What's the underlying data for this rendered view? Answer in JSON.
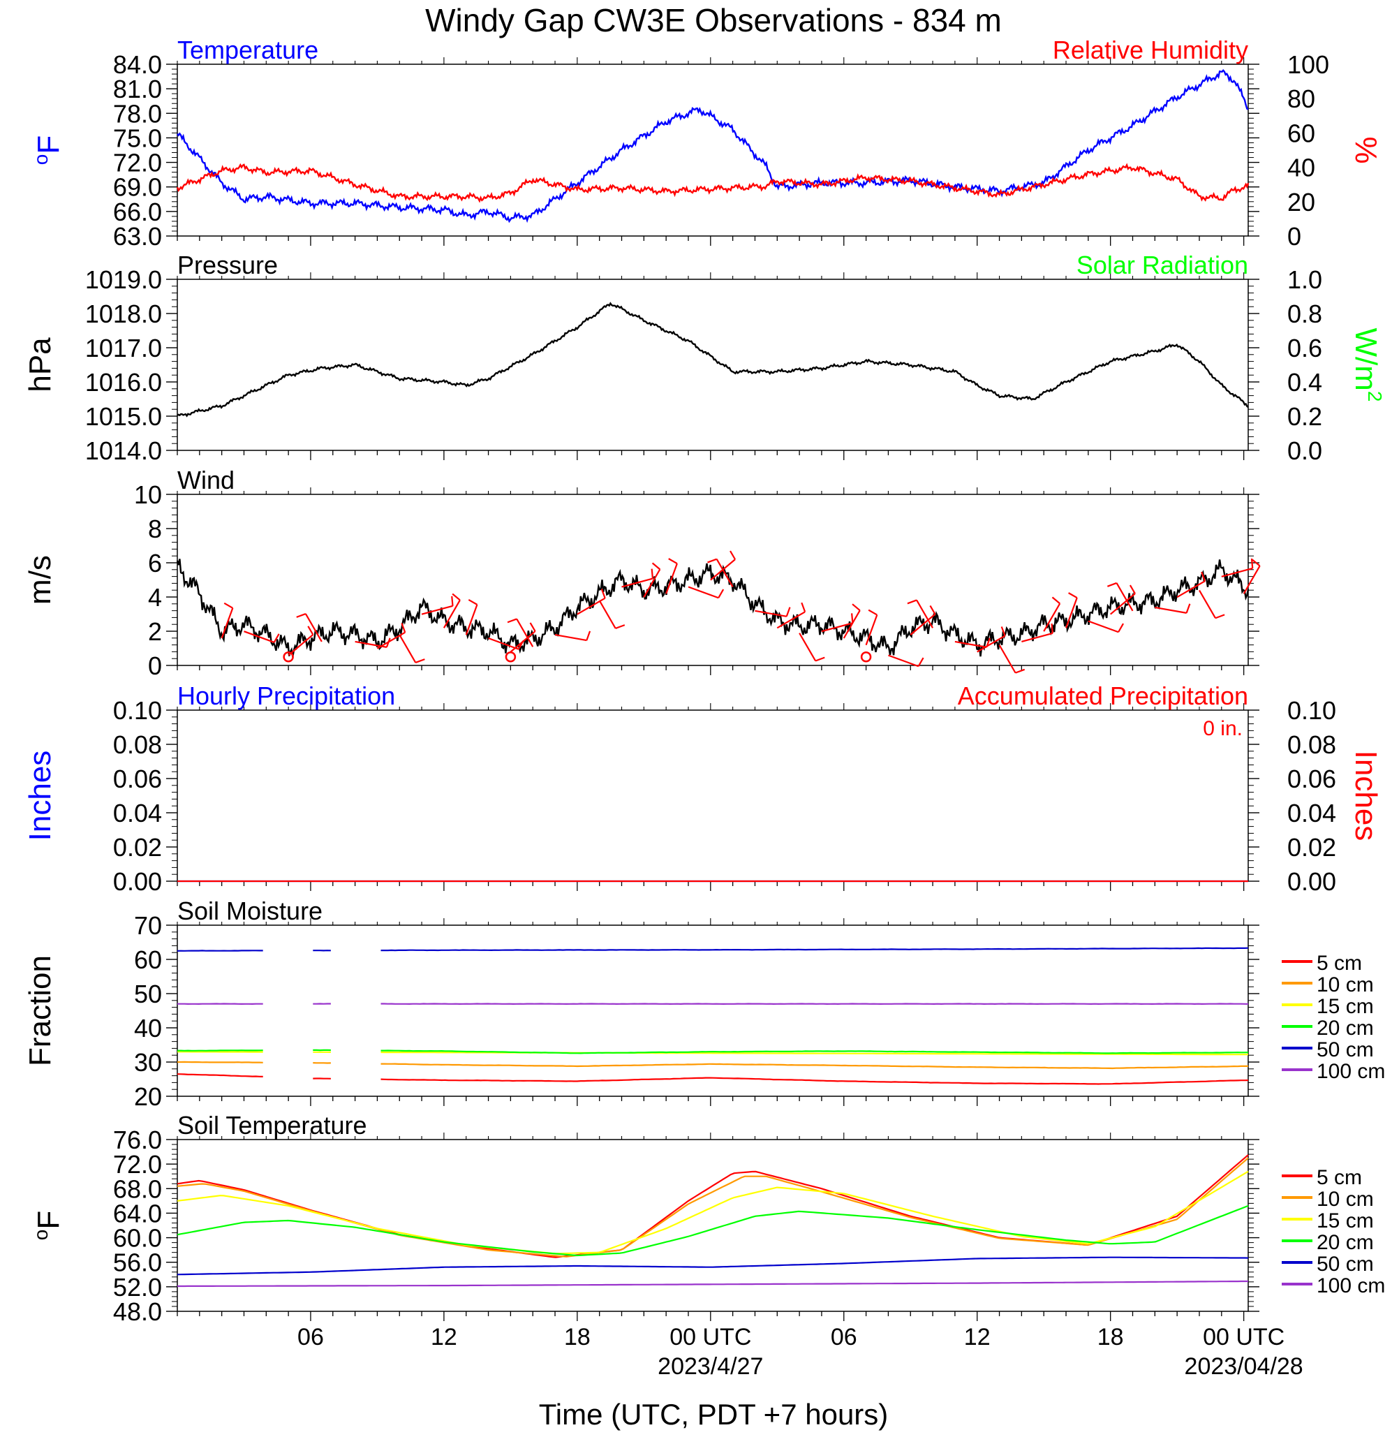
{
  "title": "Windy Gap CW3E Observations - 834 m",
  "xlabel": "Time (UTC, PDT +7 hours)",
  "x_ticks": [
    "06",
    "12",
    "18",
    "00 UTC",
    "06",
    "12",
    "18",
    "00 UTC"
  ],
  "date_labels": [
    "2023/4/27",
    "2023/04/28"
  ],
  "colors": {
    "blue": "#0000ff",
    "red": "#ff0000",
    "green": "#00ff00",
    "black": "#000000",
    "orange": "#ff9900",
    "yellow": "#ffff00",
    "purple": "#9933cc",
    "navy": "#0000cc"
  },
  "chart_data": [
    {
      "type": "line",
      "left_title": "Temperature",
      "right_title": "Relative Humidity",
      "ylabel": "°F",
      "ylabel_right": "%",
      "ylim": [
        63,
        84
      ],
      "y2lim": [
        0,
        100
      ],
      "y_ticks": [
        "63.0",
        "66.0",
        "69.0",
        "72.0",
        "75.0",
        "78.0",
        "81.0",
        "84.0"
      ],
      "y2_ticks": [
        "0",
        "20",
        "40",
        "60",
        "80",
        "100"
      ],
      "x_hours": [
        0,
        2,
        3,
        4,
        6,
        8,
        10,
        12,
        13,
        14,
        15,
        16,
        18,
        20,
        22,
        23.5,
        25,
        26.5,
        27,
        29,
        31,
        33,
        35,
        37,
        39,
        41,
        43,
        45,
        46,
        47,
        47.6,
        48.2
      ],
      "series": [
        {
          "name": "Temperature",
          "color": "#0000ff",
          "axis": "left",
          "y": [
            75.5,
            69.5,
            67.5,
            67.8,
            67.0,
            67.0,
            66.5,
            66.2,
            65.5,
            66.0,
            65.2,
            65.5,
            69.5,
            73.5,
            77.0,
            78.5,
            76.0,
            71.5,
            69.0,
            69.5,
            69.5,
            69.8,
            69.0,
            68.5,
            69.5,
            73.5,
            76.5,
            80.0,
            81.5,
            83.0,
            82.0,
            78.5
          ]
        },
        {
          "name": "Relative Humidity",
          "color": "#ff0000",
          "axis": "right",
          "y": [
            28,
            38,
            40,
            37,
            38,
            30,
            23,
            23,
            23,
            22,
            25,
            33,
            27,
            28,
            26,
            27,
            28,
            29,
            32,
            30,
            34,
            32,
            28,
            24,
            30,
            36,
            40,
            33,
            23,
            22,
            27,
            29
          ]
        }
      ]
    },
    {
      "type": "line",
      "left_title": "Pressure",
      "right_title": "Solar Radiation",
      "ylabel": "hPa",
      "ylabel_right": "W/m",
      "ylabel_right_sup": "2",
      "ylim": [
        1014,
        1019
      ],
      "y2lim": [
        0,
        1
      ],
      "y_ticks": [
        "1014.0",
        "1015.0",
        "1016.0",
        "1017.0",
        "1018.0",
        "1019.0"
      ],
      "y2_ticks": [
        "0.0",
        "0.2",
        "0.4",
        "0.6",
        "0.8",
        "1.0"
      ],
      "x_hours": [
        0,
        2,
        4,
        5,
        6.5,
        8,
        9,
        10,
        12,
        13,
        14,
        16,
        18,
        19.5,
        21,
        23,
        25,
        27,
        29,
        31,
        33,
        35,
        36,
        37,
        38.5,
        40,
        42,
        44,
        45,
        46,
        47,
        48.2
      ],
      "series": [
        {
          "name": "Pressure",
          "color": "#000000",
          "axis": "left",
          "y": [
            1015.0,
            1015.3,
            1015.9,
            1016.2,
            1016.4,
            1016.5,
            1016.3,
            1016.1,
            1016.0,
            1015.9,
            1016.1,
            1016.8,
            1017.6,
            1018.3,
            1017.8,
            1017.2,
            1016.3,
            1016.3,
            1016.4,
            1016.6,
            1016.5,
            1016.3,
            1015.9,
            1015.6,
            1015.5,
            1016.0,
            1016.6,
            1016.9,
            1017.1,
            1016.6,
            1015.9,
            1015.3
          ]
        }
      ]
    },
    {
      "type": "line",
      "left_title": "Wind",
      "ylabel": "m/s",
      "ylim": [
        0,
        10
      ],
      "y_ticks": [
        "0",
        "2",
        "4",
        "6",
        "8",
        "10"
      ],
      "x_hours": [
        0,
        1,
        2,
        3,
        4,
        5,
        6,
        7,
        8,
        9,
        10,
        11,
        12,
        13,
        14,
        15,
        16,
        17,
        18,
        19,
        20,
        21,
        22,
        23,
        24,
        25,
        26,
        27,
        28,
        29,
        30,
        31,
        32,
        33,
        34,
        35,
        36,
        37,
        38,
        39,
        40,
        41,
        42,
        43,
        44,
        45,
        46,
        47,
        48.2
      ],
      "series": [
        {
          "name": "Wind",
          "color": "#000000",
          "axis": "left",
          "y": [
            5.8,
            4.2,
            2.0,
            2.4,
            1.8,
            1.0,
            1.6,
            2.0,
            1.8,
            1.4,
            2.2,
            3.4,
            2.6,
            2.2,
            2.0,
            1.2,
            1.5,
            2.2,
            3.4,
            4.2,
            5.0,
            4.4,
            4.6,
            5.0,
            5.4,
            5.0,
            3.6,
            2.6,
            2.3,
            2.4,
            2.0,
            1.6,
            1.0,
            2.2,
            2.6,
            1.8,
            1.2,
            1.6,
            1.8,
            2.4,
            2.6,
            3.0,
            3.4,
            3.6,
            3.8,
            4.4,
            4.8,
            5.6,
            4.4
          ]
        }
      ],
      "barb_hours": [
        2,
        3,
        5,
        6.5,
        8,
        9,
        10,
        11,
        12,
        13,
        14,
        15,
        16,
        17,
        18,
        19,
        20,
        21,
        22,
        23,
        24,
        25,
        26,
        27,
        28,
        29,
        30,
        31,
        32,
        33,
        34,
        35,
        36,
        37,
        38,
        39,
        40,
        41,
        42,
        43,
        44,
        45,
        46,
        47,
        48
      ],
      "calm_hours": [
        5,
        15,
        31
      ]
    },
    {
      "type": "line",
      "left_title": "Hourly Precipitation",
      "right_title": "Accumulated Precipitation",
      "total_label": "0 in.",
      "ylabel": "Inches",
      "ylabel_right": "Inches",
      "ylim": [
        0,
        0.1
      ],
      "y2lim": [
        0,
        0.1
      ],
      "y_ticks": [
        "0.00",
        "0.02",
        "0.04",
        "0.06",
        "0.08",
        "0.10"
      ],
      "y2_ticks": [
        "0.00",
        "0.02",
        "0.04",
        "0.06",
        "0.08",
        "0.10"
      ],
      "series": [
        {
          "name": "Hourly Precipitation",
          "color": "#0000ff",
          "x_hours": [
            0,
            48.2
          ],
          "y": [
            0,
            0
          ]
        },
        {
          "name": "Accumulated Precipitation",
          "color": "#ff0000",
          "x_hours": [
            0,
            48.2
          ],
          "y": [
            0,
            0
          ]
        }
      ]
    },
    {
      "type": "line",
      "left_title": "Soil Moisture",
      "ylabel": "Fraction",
      "ylim": [
        20,
        70
      ],
      "y_ticks": [
        "20",
        "30",
        "40",
        "50",
        "60",
        "70"
      ],
      "gaps": [
        [
          4,
          6
        ],
        [
          7,
          9
        ]
      ],
      "series": [
        {
          "name": "5 cm",
          "color": "#ff0000",
          "x_hours": [
            0,
            4,
            6,
            12,
            18,
            24,
            30,
            36,
            42,
            48.2
          ],
          "y": [
            26.5,
            25.7,
            25.2,
            24.7,
            24.4,
            25.4,
            24.4,
            23.8,
            23.6,
            24.7
          ]
        },
        {
          "name": "10 cm",
          "color": "#ff9900",
          "x_hours": [
            0,
            6,
            12,
            18,
            24,
            30,
            36,
            42,
            48.2
          ],
          "y": [
            30.0,
            29.8,
            29.2,
            28.8,
            29.4,
            29.0,
            28.5,
            28.2,
            28.8
          ]
        },
        {
          "name": "15 cm",
          "color": "#ffff00",
          "x_hours": [
            0,
            48.2
          ],
          "y": [
            33.0,
            32.2
          ]
        },
        {
          "name": "20 cm",
          "color": "#00ff00",
          "x_hours": [
            0,
            6,
            12,
            18,
            24,
            30,
            36,
            42,
            48.2
          ],
          "y": [
            33.3,
            33.5,
            33.2,
            32.6,
            33.0,
            33.2,
            32.9,
            32.6,
            32.8
          ]
        },
        {
          "name": "50 cm",
          "color": "#0000cc",
          "x_hours": [
            0,
            12,
            24,
            36,
            48.2
          ],
          "y": [
            62.5,
            62.7,
            62.8,
            63.0,
            63.3
          ]
        },
        {
          "name": "100 cm",
          "color": "#9933cc",
          "x_hours": [
            0,
            12,
            24,
            36,
            48.2
          ],
          "y": [
            47.0,
            47.0,
            47.0,
            47.0,
            47.0
          ]
        }
      ]
    },
    {
      "type": "line",
      "left_title": "Soil Temperature",
      "ylabel": "°F",
      "ylim": [
        48,
        76
      ],
      "y_ticks": [
        "48.0",
        "52.0",
        "56.0",
        "60.0",
        "64.0",
        "68.0",
        "72.0",
        "76.0"
      ],
      "series": [
        {
          "name": "5 cm",
          "color": "#ff0000",
          "x_hours": [
            0,
            1,
            3,
            6,
            10,
            14,
            17,
            20,
            23,
            25,
            26,
            29,
            33,
            37,
            41,
            45,
            48.2
          ],
          "y": [
            68.8,
            69.3,
            67.8,
            64.5,
            60.5,
            58.2,
            56.8,
            58.0,
            66.0,
            70.5,
            70.8,
            68.0,
            63.5,
            60.0,
            58.8,
            63.5,
            73.5
          ]
        },
        {
          "name": "10 cm",
          "color": "#ff9900",
          "x_hours": [
            0,
            1.2,
            3,
            6,
            10,
            14,
            17.5,
            20,
            23,
            25.5,
            26.5,
            29,
            33,
            37,
            41,
            45,
            48.2
          ],
          "y": [
            68.4,
            68.8,
            67.6,
            64.4,
            60.4,
            58.0,
            56.9,
            58.0,
            65.5,
            70.0,
            70.0,
            67.5,
            63.3,
            59.9,
            58.8,
            63.0,
            73.0
          ]
        },
        {
          "name": "15 cm",
          "color": "#ffff00",
          "x_hours": [
            0,
            2,
            5,
            9,
            13,
            17,
            19,
            22,
            25,
            27,
            30,
            34,
            38,
            41,
            44,
            48.2
          ],
          "y": [
            66.0,
            66.9,
            65.2,
            61.5,
            58.8,
            57.4,
            57.6,
            61.5,
            66.5,
            68.2,
            67.2,
            63.5,
            60.2,
            59.0,
            61.8,
            70.8
          ]
        },
        {
          "name": "20 cm",
          "color": "#00ff00",
          "x_hours": [
            0,
            3,
            5,
            8,
            12,
            16,
            18,
            20,
            23,
            26,
            28,
            32,
            36,
            40,
            42,
            44,
            48.2
          ],
          "y": [
            60.5,
            62.5,
            62.8,
            61.7,
            59.3,
            57.7,
            57.1,
            57.5,
            60.2,
            63.5,
            64.3,
            63.2,
            61.3,
            59.6,
            59.0,
            59.3,
            65.2
          ]
        },
        {
          "name": "50 cm",
          "color": "#0000cc",
          "x_hours": [
            0,
            6,
            12,
            18,
            24,
            30,
            36,
            42,
            48.2
          ],
          "y": [
            54.0,
            54.4,
            55.2,
            55.4,
            55.2,
            55.8,
            56.6,
            56.8,
            56.7
          ]
        },
        {
          "name": "100 cm",
          "color": "#9933cc",
          "x_hours": [
            0,
            12,
            24,
            36,
            48.2
          ],
          "y": [
            52.1,
            52.2,
            52.4,
            52.6,
            52.9
          ]
        }
      ]
    }
  ],
  "legend_labels": [
    "5 cm",
    "10 cm",
    "15 cm",
    "20 cm",
    "50 cm",
    "100 cm"
  ]
}
